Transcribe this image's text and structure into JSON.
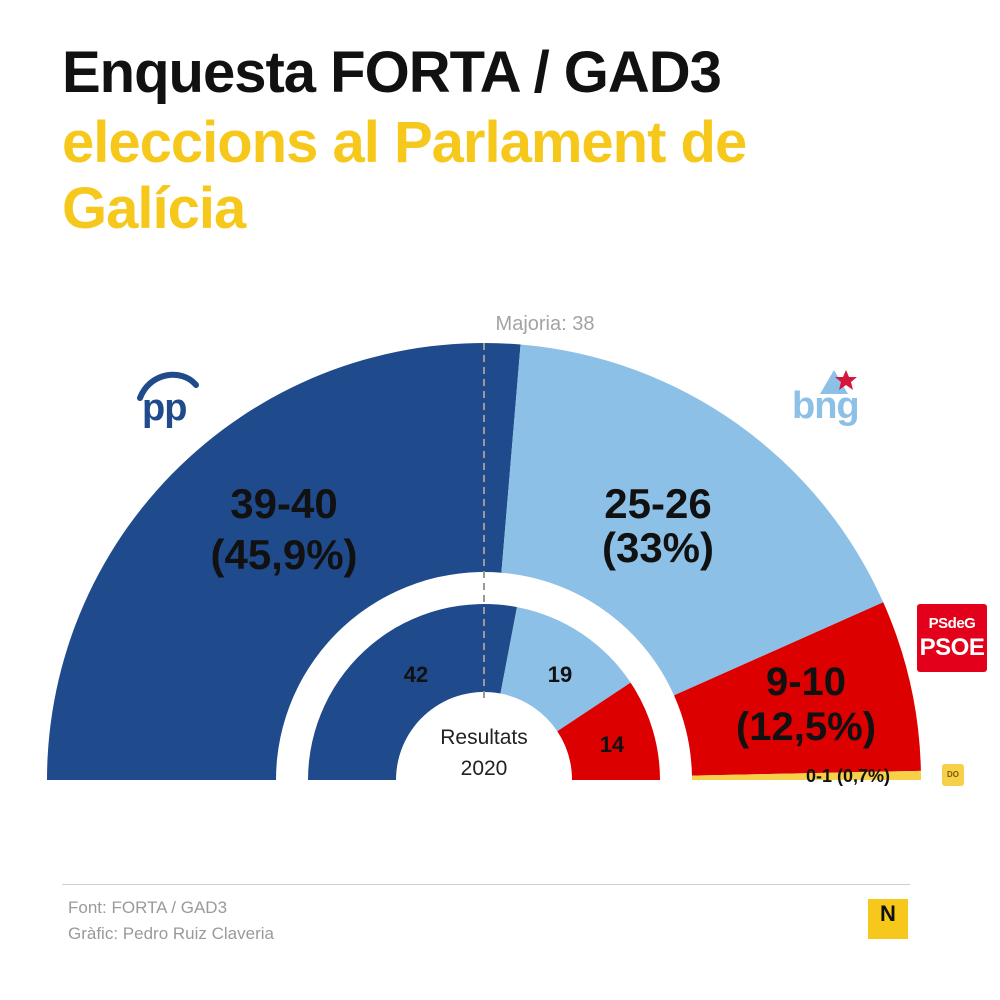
{
  "header": {
    "title": "Enquesta FORTA / GAD3",
    "subtitle": "eleccions al Parlament de Galícia"
  },
  "chart_data": [
    {
      "type": "parliament-semicircle",
      "majority_label": "Majoria: 38",
      "total_seats": 75,
      "majority": 38,
      "series": [
        {
          "party": "PP",
          "seats_min": 39,
          "seats_max": 40,
          "vote_pct": 45.9,
          "label": "39-40",
          "pct_label": "(45,9%)",
          "color": "#1f4a8c"
        },
        {
          "party": "BNG",
          "seats_min": 25,
          "seats_max": 26,
          "vote_pct": 33,
          "label": "25-26",
          "pct_label": "(33%)",
          "color": "#8cc0e6"
        },
        {
          "party": "PSdeG-PSOE",
          "seats_min": 9,
          "seats_max": 10,
          "vote_pct": 12.5,
          "label": "9-10",
          "pct_label": "(12,5%)",
          "color": "#dc0000"
        },
        {
          "party": "DO",
          "seats_min": 0,
          "seats_max": 1,
          "vote_pct": 0.7,
          "label": "0-1 (0,7%)",
          "color": "#f7d04a"
        }
      ]
    },
    {
      "type": "parliament-semicircle",
      "center_label": [
        "Resultats",
        "2020"
      ],
      "total_seats": 75,
      "series": [
        {
          "party": "PP",
          "seats": 42,
          "label": "42",
          "color": "#1f4a8c"
        },
        {
          "party": "BNG",
          "seats": 19,
          "label": "19",
          "color": "#8cc0e6"
        },
        {
          "party": "PSdeG-PSOE",
          "seats": 14,
          "label": "14",
          "color": "#dc0000"
        }
      ]
    }
  ],
  "logos": {
    "pp": "pp",
    "bng": "bng",
    "psoe_line1": "PSdeG",
    "psoe_line2": "PSOE",
    "do": "DO",
    "brand": "N"
  },
  "footer": {
    "source": "Font: FORTA / GAD3",
    "credit": "Gràfic: Pedro Ruiz Claveria"
  }
}
